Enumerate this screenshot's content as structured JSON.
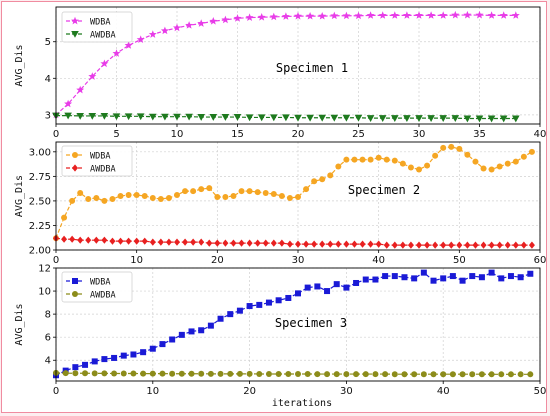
{
  "colors": {
    "page_background": "#fdeef0",
    "frame_border": "#f08ca0",
    "grid": "#d0d0d0"
  },
  "figure": {
    "xlabel": "iterations"
  },
  "chart_data": [
    {
      "type": "line",
      "title": "",
      "annotation": "Specimen 1",
      "xlabel": "",
      "ylabel": "AVG_Dis",
      "xlim": [
        0,
        40
      ],
      "ylim": [
        2.75,
        5.95
      ],
      "xticks": [
        0,
        5,
        10,
        15,
        20,
        25,
        30,
        35,
        40
      ],
      "yticks": [
        3,
        4,
        5
      ],
      "grid": true,
      "legend_position": "top-left",
      "x": [
        0,
        1,
        2,
        3,
        4,
        5,
        6,
        7,
        8,
        9,
        10,
        11,
        12,
        13,
        14,
        15,
        16,
        17,
        18,
        19,
        20,
        21,
        22,
        23,
        24,
        25,
        26,
        27,
        28,
        29,
        30,
        31,
        32,
        33,
        34,
        35,
        36,
        37,
        38
      ],
      "series": [
        {
          "name": "WDBA",
          "color": "#e83ce8",
          "marker": "star",
          "values": [
            3.0,
            3.3,
            3.68,
            4.05,
            4.4,
            4.68,
            4.9,
            5.06,
            5.2,
            5.3,
            5.38,
            5.45,
            5.5,
            5.56,
            5.6,
            5.64,
            5.66,
            5.67,
            5.68,
            5.69,
            5.7,
            5.7,
            5.7,
            5.71,
            5.71,
            5.71,
            5.72,
            5.72,
            5.72,
            5.72,
            5.72,
            5.72,
            5.72,
            5.73,
            5.73,
            5.73,
            5.72,
            5.72,
            5.72
          ]
        },
        {
          "name": "AWDBA",
          "color": "#1e7a1e",
          "marker": "triangle-down",
          "values": [
            2.98,
            2.98,
            2.97,
            2.97,
            2.97,
            2.96,
            2.96,
            2.96,
            2.95,
            2.95,
            2.95,
            2.95,
            2.94,
            2.94,
            2.94,
            2.94,
            2.93,
            2.93,
            2.93,
            2.93,
            2.92,
            2.92,
            2.92,
            2.92,
            2.92,
            2.92,
            2.91,
            2.91,
            2.91,
            2.91,
            2.91,
            2.91,
            2.91,
            2.91,
            2.9,
            2.9,
            2.9,
            2.9,
            2.9
          ]
        }
      ]
    },
    {
      "type": "line",
      "title": "",
      "annotation": "Specimen 2",
      "xlabel": "",
      "ylabel": "AVG_Dis",
      "xlim": [
        0,
        60
      ],
      "ylim": [
        2.0,
        3.1
      ],
      "xticks": [
        0,
        10,
        20,
        30,
        40,
        50,
        60
      ],
      "yticks": [
        2.0,
        2.25,
        2.5,
        2.75,
        3.0
      ],
      "ytick_labels": [
        "2.00",
        "2.25",
        "2.50",
        "2.75",
        "3.00"
      ],
      "grid": true,
      "legend_position": "top-left",
      "x": [
        0,
        1,
        2,
        3,
        4,
        5,
        6,
        7,
        8,
        9,
        10,
        11,
        12,
        13,
        14,
        15,
        16,
        17,
        18,
        19,
        20,
        21,
        22,
        23,
        24,
        25,
        26,
        27,
        28,
        29,
        30,
        31,
        32,
        33,
        34,
        35,
        36,
        37,
        38,
        39,
        40,
        41,
        42,
        43,
        44,
        45,
        46,
        47,
        48,
        49,
        50,
        51,
        52,
        53,
        54,
        55,
        56,
        57,
        58,
        59
      ],
      "series": [
        {
          "name": "WDBA",
          "color": "#f5a623",
          "marker": "circle",
          "values": [
            2.12,
            2.33,
            2.5,
            2.58,
            2.52,
            2.53,
            2.5,
            2.52,
            2.55,
            2.56,
            2.56,
            2.55,
            2.53,
            2.52,
            2.53,
            2.56,
            2.6,
            2.6,
            2.62,
            2.63,
            2.54,
            2.54,
            2.55,
            2.6,
            2.6,
            2.59,
            2.58,
            2.57,
            2.55,
            2.53,
            2.54,
            2.62,
            2.7,
            2.72,
            2.76,
            2.85,
            2.92,
            2.92,
            2.92,
            2.92,
            2.94,
            2.92,
            2.91,
            2.88,
            2.84,
            2.82,
            2.86,
            2.96,
            3.04,
            3.05,
            3.03,
            2.97,
            2.9,
            2.83,
            2.82,
            2.85,
            2.88,
            2.9,
            2.95,
            3.0
          ]
        },
        {
          "name": "AWDBA",
          "color": "#e82020",
          "marker": "diamond",
          "values": [
            2.12,
            2.11,
            2.11,
            2.1,
            2.1,
            2.1,
            2.1,
            2.09,
            2.09,
            2.09,
            2.09,
            2.09,
            2.08,
            2.08,
            2.08,
            2.08,
            2.08,
            2.08,
            2.08,
            2.07,
            2.07,
            2.07,
            2.07,
            2.07,
            2.07,
            2.07,
            2.07,
            2.07,
            2.07,
            2.06,
            2.06,
            2.06,
            2.06,
            2.06,
            2.06,
            2.06,
            2.06,
            2.06,
            2.06,
            2.06,
            2.06,
            2.05,
            2.05,
            2.05,
            2.05,
            2.05,
            2.05,
            2.05,
            2.05,
            2.05,
            2.05,
            2.05,
            2.05,
            2.05,
            2.05,
            2.05,
            2.05,
            2.05,
            2.05,
            2.05
          ]
        }
      ]
    },
    {
      "type": "line",
      "title": "",
      "annotation": "Specimen 3",
      "xlabel": "iterations",
      "ylabel": "AVG_Dis",
      "xlim": [
        0,
        50
      ],
      "ylim": [
        2.2,
        12.0
      ],
      "xticks": [
        0,
        10,
        20,
        30,
        40,
        50
      ],
      "yticks": [
        4,
        6,
        8,
        10,
        12
      ],
      "grid": true,
      "legend_position": "top-left",
      "x": [
        0,
        1,
        2,
        3,
        4,
        5,
        6,
        7,
        8,
        9,
        10,
        11,
        12,
        13,
        14,
        15,
        16,
        17,
        18,
        19,
        20,
        21,
        22,
        23,
        24,
        25,
        26,
        27,
        28,
        29,
        30,
        31,
        32,
        33,
        34,
        35,
        36,
        37,
        38,
        39,
        40,
        41,
        42,
        43,
        44,
        45,
        46,
        47,
        48,
        49
      ],
      "series": [
        {
          "name": "WDBA",
          "color": "#1a1ad6",
          "marker": "square",
          "values": [
            2.7,
            3.1,
            3.4,
            3.6,
            3.9,
            4.1,
            4.2,
            4.4,
            4.5,
            4.7,
            5.0,
            5.4,
            5.8,
            6.2,
            6.5,
            6.6,
            7.0,
            7.6,
            8.0,
            8.3,
            8.7,
            8.8,
            9.0,
            9.2,
            9.4,
            9.8,
            10.3,
            10.4,
            10.0,
            10.6,
            10.3,
            10.7,
            11.0,
            11.0,
            11.3,
            11.3,
            11.2,
            11.1,
            11.6,
            10.9,
            11.1,
            11.3,
            10.9,
            11.3,
            11.2,
            11.6,
            11.1,
            11.3,
            11.2,
            11.5
          ]
        },
        {
          "name": "AWDBA",
          "color": "#8c8c1a",
          "marker": "circle",
          "values": [
            2.9,
            2.88,
            2.87,
            2.87,
            2.86,
            2.86,
            2.85,
            2.85,
            2.85,
            2.84,
            2.84,
            2.84,
            2.83,
            2.83,
            2.83,
            2.83,
            2.82,
            2.82,
            2.82,
            2.82,
            2.82,
            2.81,
            2.81,
            2.81,
            2.81,
            2.81,
            2.81,
            2.8,
            2.8,
            2.8,
            2.8,
            2.8,
            2.8,
            2.8,
            2.8,
            2.79,
            2.79,
            2.79,
            2.79,
            2.79,
            2.79,
            2.79,
            2.79,
            2.79,
            2.79,
            2.78,
            2.78,
            2.78,
            2.78,
            2.78
          ]
        }
      ]
    }
  ]
}
